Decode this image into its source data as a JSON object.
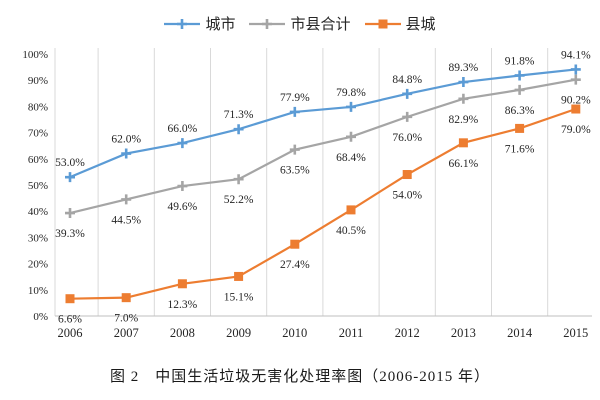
{
  "caption": "图 2　中国生活垃圾无害化处理率图（2006-2015 年）",
  "colors": {
    "gridline": "#d9d9d9",
    "axis_line": "#bfbfbf",
    "text": "#262626"
  },
  "chart_data": {
    "type": "line",
    "title": "图 2　中国生活垃圾无害化处理率图（2006-2015 年）",
    "categories": [
      "2006",
      "2007",
      "2008",
      "2009",
      "2010",
      "2011",
      "2012",
      "2013",
      "2014",
      "2015"
    ],
    "series": [
      {
        "name": "城市",
        "values": [
          53.0,
          62.0,
          66.0,
          71.3,
          77.9,
          79.8,
          84.8,
          89.3,
          91.8,
          94.1
        ],
        "color": "#5B9BD5",
        "marker": "plus",
        "label_position": "above"
      },
      {
        "name": "市县合计",
        "values": [
          39.3,
          44.5,
          49.6,
          52.2,
          63.5,
          68.4,
          76.0,
          82.9,
          86.3,
          90.2
        ],
        "color": "#A5A5A5",
        "marker": "plus",
        "label_position": "below"
      },
      {
        "name": "县城",
        "values": [
          6.6,
          7.0,
          12.3,
          15.1,
          27.4,
          40.5,
          54.0,
          66.1,
          71.6,
          79.0
        ],
        "color": "#ED7D31",
        "marker": "square",
        "label_position": "below"
      }
    ],
    "xlabel": "",
    "ylabel": "",
    "y_axis": {
      "min": 0,
      "max": 100,
      "step": 10,
      "tick_suffix": "%"
    },
    "grid": "vertical-only",
    "legend_position": "top"
  }
}
